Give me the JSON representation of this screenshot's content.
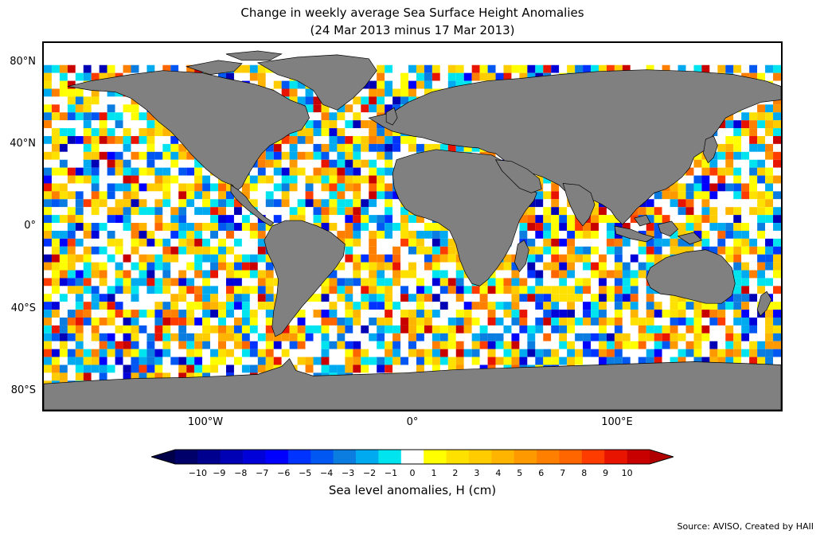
{
  "title": {
    "line1": "Change in weekly average Sea Surface Height Anomalies",
    "line2": "(24 Mar 2013 minus 17 Mar 2013)"
  },
  "map": {
    "projection": "equirectangular",
    "lon_range": [
      -180,
      180
    ],
    "lat_range": [
      -90,
      90
    ],
    "land_color": "#808080",
    "ocean_no_change_color": "#ffffff",
    "lat_labels": [
      "80°N",
      "40°N",
      "0°",
      "40°S",
      "80°S"
    ],
    "lon_labels": [
      "100°W",
      "0°",
      "100°E"
    ]
  },
  "colorbar": {
    "label": "Sea level anomalies, H (cm)",
    "ticks": [
      "−10",
      "−9",
      "−8",
      "−7",
      "−6",
      "−5",
      "−4",
      "−3",
      "−2",
      "−1",
      "0",
      "1",
      "2",
      "3",
      "4",
      "5",
      "6",
      "7",
      "8",
      "9",
      "10"
    ],
    "colors": [
      "#00006a",
      "#00008e",
      "#0000b4",
      "#0000d8",
      "#0000ff",
      "#0033ff",
      "#0057f2",
      "#0b7ce0",
      "#00aaf0",
      "#00e4f0",
      "#ffffff",
      "#ffff00",
      "#ffe100",
      "#ffcc00",
      "#ffb400",
      "#ff9900",
      "#ff7f00",
      "#ff6600",
      "#ff3c00",
      "#e81400",
      "#c80000"
    ],
    "extend_low_color": "#00004a",
    "extend_high_color": "#b00000"
  },
  "footer": {
    "source": "Source: AVISO, Created by HAII"
  }
}
